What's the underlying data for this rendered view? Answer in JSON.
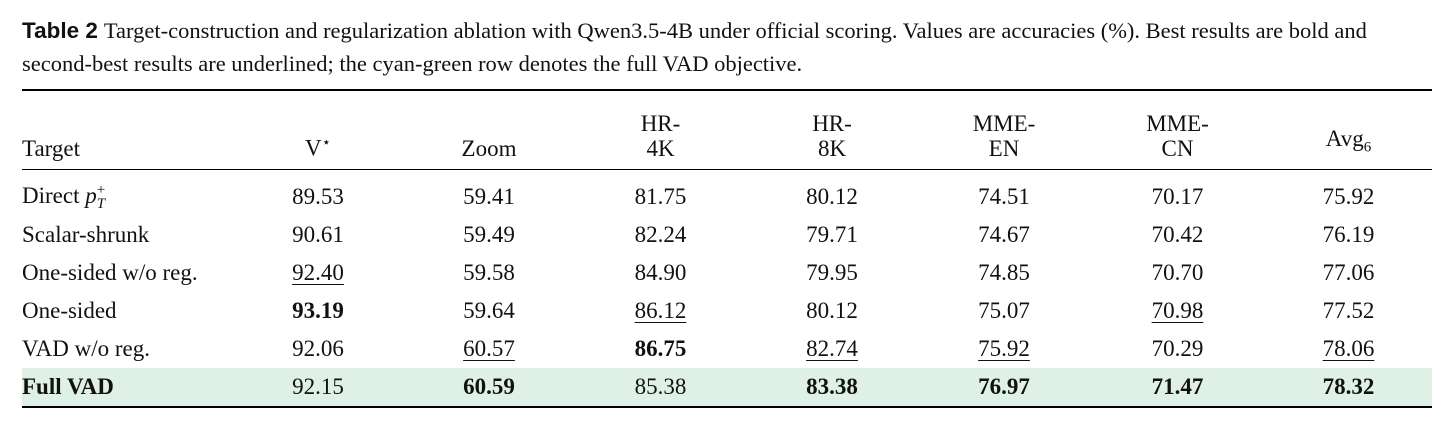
{
  "caption": {
    "label": "Table 2",
    "text": "Target-construction and regularization ablation with Qwen3.5-4B under official scoring. Values are accuracies (%). Best results are bold and second-best results are underlined; the cyan-green row denotes the full VAD objective."
  },
  "table": {
    "header": [
      "Target",
      {
        "text": "V",
        "sup": "⋆"
      },
      "Zoom",
      "HR-\n4K",
      "HR-\n8K",
      "MME-\nEN",
      "MME-\nCN",
      {
        "text": "Avg",
        "sub": "6"
      }
    ],
    "rows": [
      [
        {
          "text": "Direct ",
          "math": "p",
          "sub": "T",
          "sup": "+"
        },
        "89.53",
        "59.41",
        "81.75",
        "80.12",
        "74.51",
        "70.17",
        "75.92"
      ],
      [
        "Scalar-shrunk",
        "90.61",
        "59.49",
        "82.24",
        "79.71",
        "74.67",
        "70.42",
        "76.19"
      ],
      [
        "One-sided w/o reg.",
        "92.40",
        "59.58",
        "84.90",
        "79.95",
        "74.85",
        "70.70",
        "77.06"
      ],
      [
        "One-sided",
        "93.19",
        "59.64",
        "86.12",
        "80.12",
        "75.07",
        "70.98",
        "77.52"
      ],
      [
        "VAD w/o reg.",
        "92.06",
        "60.57",
        "86.75",
        "82.74",
        "75.92",
        "70.29",
        "78.06"
      ],
      [
        "Full VAD",
        "92.15",
        "60.59",
        "85.38",
        "83.38",
        "76.97",
        "71.47",
        "78.32"
      ]
    ],
    "bold_cells": [
      [
        3,
        1
      ],
      [
        4,
        3
      ],
      [
        5,
        0
      ],
      [
        5,
        2
      ],
      [
        5,
        4
      ],
      [
        5,
        5
      ],
      [
        5,
        6
      ],
      [
        5,
        7
      ]
    ],
    "underlined_cells": [
      [
        2,
        1
      ],
      [
        3,
        3
      ],
      [
        3,
        6
      ],
      [
        4,
        2
      ],
      [
        4,
        4
      ],
      [
        4,
        5
      ],
      [
        4,
        7
      ]
    ],
    "highlighted_row": 5,
    "highlight_color": "#dff0e6"
  }
}
